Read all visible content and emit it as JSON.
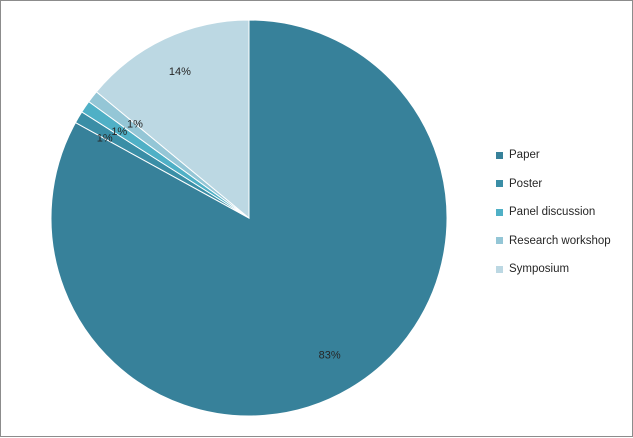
{
  "chart_data": {
    "type": "pie",
    "title": "",
    "legend_position": "right",
    "slices": [
      {
        "label": "Paper",
        "value": 83,
        "display": "83%",
        "color": "#37819a"
      },
      {
        "label": "Poster",
        "value": 1,
        "display": "1%",
        "color": "#3a8ea6"
      },
      {
        "label": "Panel discussion",
        "value": 1,
        "display": "1%",
        "color": "#4fb0c6"
      },
      {
        "label": "Research workshop",
        "value": 1,
        "display": "1%",
        "color": "#94c6d6"
      },
      {
        "label": "Symposium",
        "value": 14,
        "display": "14%",
        "color": "#bcd8e3"
      }
    ]
  }
}
